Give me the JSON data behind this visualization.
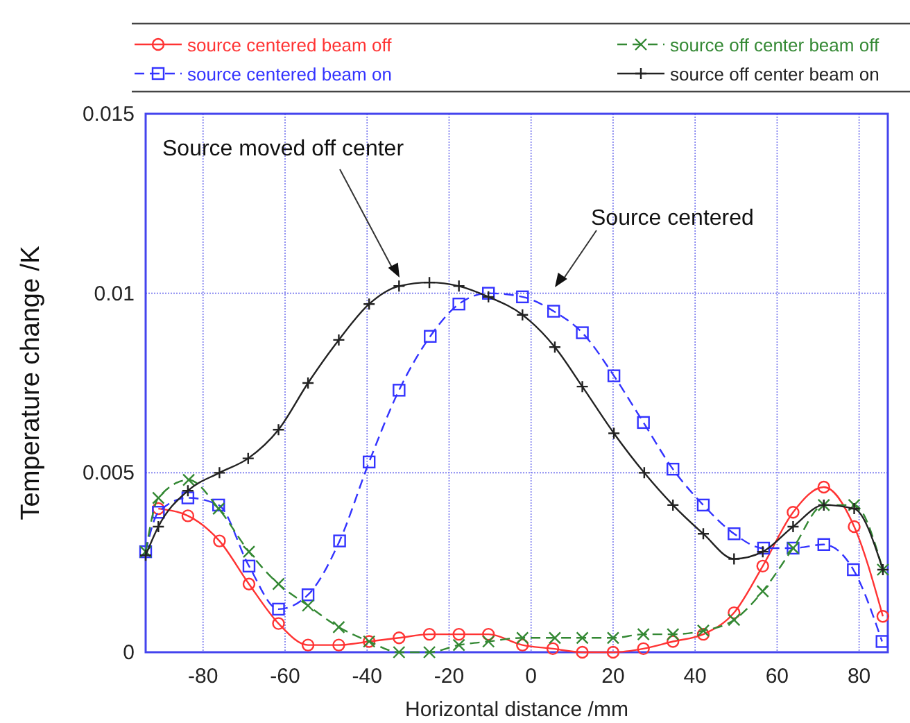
{
  "chart_data": {
    "type": "line",
    "xlabel": "Horizontal distance /mm",
    "ylabel": "Temperature change /K",
    "xlim": [
      -94,
      87
    ],
    "xticks": [
      -80,
      -60,
      -40,
      -20,
      0,
      20,
      40,
      60,
      80
    ],
    "ylim": [
      0,
      0.015
    ],
    "yticks": [
      0,
      0.005,
      0.01,
      0.015
    ],
    "grid": true,
    "legend": "top",
    "annotations": [
      "Source moved off center",
      "Source centered"
    ],
    "series": [
      {
        "name": "source centered beam off",
        "color": "#ff3333",
        "marker": "circle",
        "line_style": "solid",
        "x": [
          -90.9,
          -83.7,
          -76,
          -68.8,
          -61.6,
          -54.4,
          -46.9,
          -39.5,
          -32.2,
          -24.8,
          -17.6,
          -10.4,
          -2.1,
          5.3,
          12.5,
          20,
          27.4,
          34.6,
          42,
          49.5,
          56.5,
          63.9,
          71.4,
          78.8,
          85.8
        ],
        "values": [
          0.004,
          0.0038,
          0.0031,
          0.0019,
          0.0008,
          0.0002,
          0.0002,
          0.0003,
          0.0004,
          0.0005,
          0.0005,
          0.0005,
          0.0002,
          0.0001,
          0.0,
          0.0,
          0.0001,
          0.0003,
          0.0005,
          0.0011,
          0.0024,
          0.0039,
          0.0046,
          0.0035,
          0.001
        ]
      },
      {
        "name": "source centered beam on",
        "color": "#3333ff",
        "marker": "square",
        "line_style": "dashed",
        "x": [
          -94,
          -90.9,
          -83.7,
          -76.2,
          -68.8,
          -61.6,
          -54.4,
          -46.7,
          -39.5,
          -32.2,
          -24.6,
          -17.6,
          -10.4,
          -2.1,
          5.5,
          12.5,
          20.2,
          27.4,
          34.6,
          42,
          49.5,
          56.7,
          63.9,
          71.4,
          78.6,
          85.6
        ],
        "values": [
          0.0028,
          0.0039,
          0.0043,
          0.0041,
          0.0024,
          0.0012,
          0.0016,
          0.0031,
          0.0053,
          0.0073,
          0.0088,
          0.0097,
          0.01,
          0.0099,
          0.0095,
          0.0089,
          0.0077,
          0.0064,
          0.0051,
          0.0041,
          0.0033,
          0.0029,
          0.0029,
          0.003,
          0.0023,
          0.0003
        ]
      },
      {
        "name": "source off center beam off",
        "color": "#338833",
        "marker": "cross",
        "line_style": "dashed",
        "x": [
          -94,
          -90.9,
          -83.5,
          -76.2,
          -68.8,
          -61.6,
          -54.4,
          -46.9,
          -39.5,
          -32.2,
          -24.8,
          -17.6,
          -10.4,
          -2.1,
          5.8,
          12.5,
          20,
          27.4,
          34.6,
          42,
          49.5,
          56.5,
          63.9,
          71.4,
          78.8,
          85.8
        ],
        "values": [
          0.0028,
          0.0043,
          0.0048,
          0.004,
          0.0028,
          0.0019,
          0.0013,
          0.0007,
          0.0003,
          0.0,
          0.0,
          0.0002,
          0.0003,
          0.0004,
          0.0004,
          0.0004,
          0.0004,
          0.0005,
          0.0005,
          0.0006,
          0.0009,
          0.0017,
          0.0029,
          0.0041,
          0.0041,
          0.0023
        ]
      },
      {
        "name": "source off center beam on",
        "color": "#222222",
        "marker": "plus",
        "line_style": "solid",
        "x": [
          -94,
          -90.9,
          -83.7,
          -76,
          -69,
          -61.6,
          -54.4,
          -46.9,
          -39.5,
          -32.2,
          -24.8,
          -17.6,
          -10.4,
          -2.1,
          5.8,
          12.5,
          20.2,
          27.6,
          34.6,
          42,
          49.5,
          56.5,
          63.9,
          71.4,
          78.8,
          85.8
        ],
        "values": [
          0.0027,
          0.0035,
          0.0045,
          0.005,
          0.0054,
          0.0062,
          0.0075,
          0.0087,
          0.0097,
          0.0102,
          0.0103,
          0.0102,
          0.0099,
          0.0094,
          0.0085,
          0.0074,
          0.0061,
          0.005,
          0.0041,
          0.0033,
          0.0026,
          0.0028,
          0.0035,
          0.0041,
          0.004,
          0.0023
        ]
      }
    ]
  }
}
